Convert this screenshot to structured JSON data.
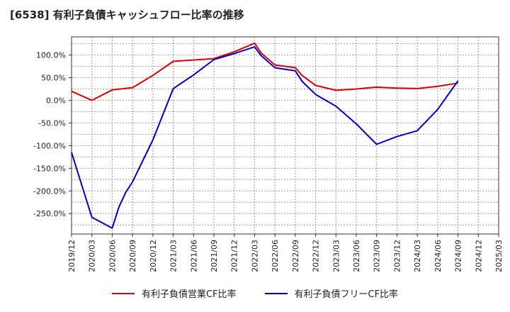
{
  "chart_data": {
    "type": "line",
    "title": "[6538]  有利子負債キャッシュフロー比率の推移",
    "x_ticks": [
      "2019/12",
      "2020/03",
      "2020/06",
      "2020/09",
      "2020/12",
      "2021/03",
      "2021/06",
      "2021/09",
      "2021/12",
      "2022/03",
      "2022/06",
      "2022/09",
      "2022/12",
      "2023/03",
      "2023/06",
      "2023/09",
      "2023/12",
      "2024/03",
      "2024/06",
      "2024/09",
      "2024/12",
      "2025/03"
    ],
    "y_ticks": [
      100,
      50,
      0,
      -50,
      -100,
      -150,
      -200,
      -250
    ],
    "y_tick_labels": [
      "100.0%",
      "50.0%",
      "0.0%",
      "-50.0%",
      "-100.0%",
      "-150.0%",
      "-200.0%",
      "-250.0%"
    ],
    "ylim": [
      -295,
      140
    ],
    "grid": true,
    "legend_position": "bottom",
    "series": [
      {
        "name": "有利子負債営業CF比率",
        "color": "#dd0000",
        "points": [
          [
            "2019/12",
            20
          ],
          [
            "2020/03",
            0
          ],
          [
            "2020/06",
            23
          ],
          [
            "2020/09",
            28
          ],
          [
            "2020/12",
            55
          ],
          [
            "2021/03",
            86
          ],
          [
            "2021/06",
            89
          ],
          [
            "2021/09",
            92
          ],
          [
            "2021/12",
            107
          ],
          [
            "2022/03",
            126
          ],
          [
            "2022/04",
            104
          ],
          [
            "2022/06",
            78
          ],
          [
            "2022/09",
            72
          ],
          [
            "2022/10",
            55
          ],
          [
            "2022/12",
            33
          ],
          [
            "2023/03",
            22
          ],
          [
            "2023/06",
            25
          ],
          [
            "2023/09",
            29
          ],
          [
            "2023/12",
            27
          ],
          [
            "2024/03",
            26
          ],
          [
            "2024/06",
            31
          ],
          [
            "2024/09",
            38
          ]
        ]
      },
      {
        "name": "有利子負債フリーCF比率",
        "color": "#0000cc",
        "points": [
          [
            "2019/12",
            -115
          ],
          [
            "2020/03",
            -258
          ],
          [
            "2020/06",
            -282
          ],
          [
            "2020/07",
            -235
          ],
          [
            "2020/08",
            -203
          ],
          [
            "2020/09",
            -180
          ],
          [
            "2020/12",
            -87
          ],
          [
            "2021/03",
            26
          ],
          [
            "2021/06",
            56
          ],
          [
            "2021/09",
            90
          ],
          [
            "2021/12",
            103
          ],
          [
            "2022/03",
            118
          ],
          [
            "2022/04",
            98
          ],
          [
            "2022/06",
            72
          ],
          [
            "2022/09",
            65
          ],
          [
            "2022/10",
            42
          ],
          [
            "2022/12",
            13
          ],
          [
            "2023/03",
            -13
          ],
          [
            "2023/06",
            -52
          ],
          [
            "2023/09",
            -97
          ],
          [
            "2023/12",
            -80
          ],
          [
            "2024/03",
            -67
          ],
          [
            "2024/06",
            -20
          ],
          [
            "2024/09",
            43
          ]
        ]
      }
    ]
  }
}
